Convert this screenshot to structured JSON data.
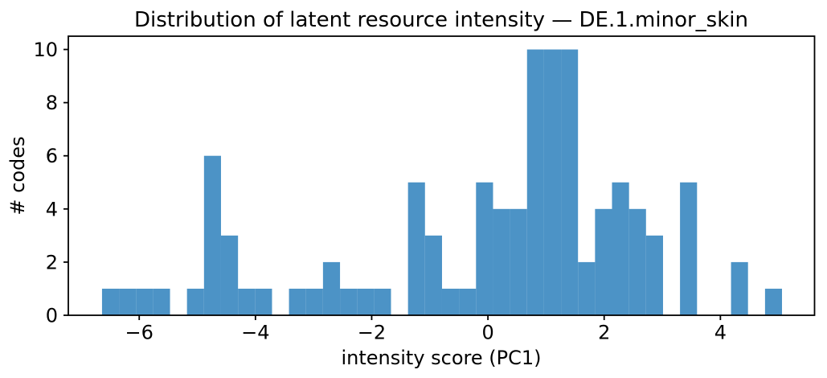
{
  "chart_data": {
    "type": "bar",
    "subtype": "histogram",
    "title": "Distribution of latent resource intensity — DE.1.minor_skin",
    "xlabel": "intensity score (PC1)",
    "ylabel": "# codes",
    "bin_edges": [
      -6.64,
      -6.348,
      -6.055,
      -5.763,
      -5.47,
      -5.178,
      -4.885,
      -4.593,
      -4.3,
      -4.008,
      -3.715,
      -3.423,
      -3.13,
      -2.838,
      -2.545,
      -2.253,
      -1.96,
      -1.668,
      -1.375,
      -1.083,
      -0.79,
      -0.498,
      -0.205,
      0.088,
      0.38,
      0.673,
      0.965,
      1.258,
      1.55,
      1.843,
      2.135,
      2.428,
      2.72,
      3.013,
      3.305,
      3.598,
      3.89,
      4.183,
      4.475,
      4.768,
      5.06
    ],
    "counts": [
      1,
      1,
      1,
      1,
      0,
      1,
      6,
      3,
      1,
      1,
      0,
      1,
      1,
      2,
      1,
      1,
      1,
      0,
      5,
      3,
      1,
      1,
      5,
      4,
      4,
      10,
      10,
      10,
      2,
      4,
      5,
      4,
      3,
      0,
      5,
      0,
      0,
      2,
      0,
      1
    ],
    "xlim": [
      -7.22,
      5.62
    ],
    "ylim": [
      0,
      10.5
    ],
    "xticks": {
      "values": [
        -6,
        -4,
        -2,
        0,
        2,
        4
      ],
      "labels": [
        "−6",
        "−4",
        "−2",
        "0",
        "2",
        "4"
      ]
    },
    "yticks": {
      "values": [
        0,
        2,
        4,
        6,
        8,
        10
      ],
      "labels": [
        "0",
        "2",
        "4",
        "6",
        "8",
        "10"
      ]
    },
    "grid": false,
    "legend": false,
    "bar_color": "#4c93c6",
    "axis_color": "#000000",
    "background_color": "#ffffff"
  }
}
